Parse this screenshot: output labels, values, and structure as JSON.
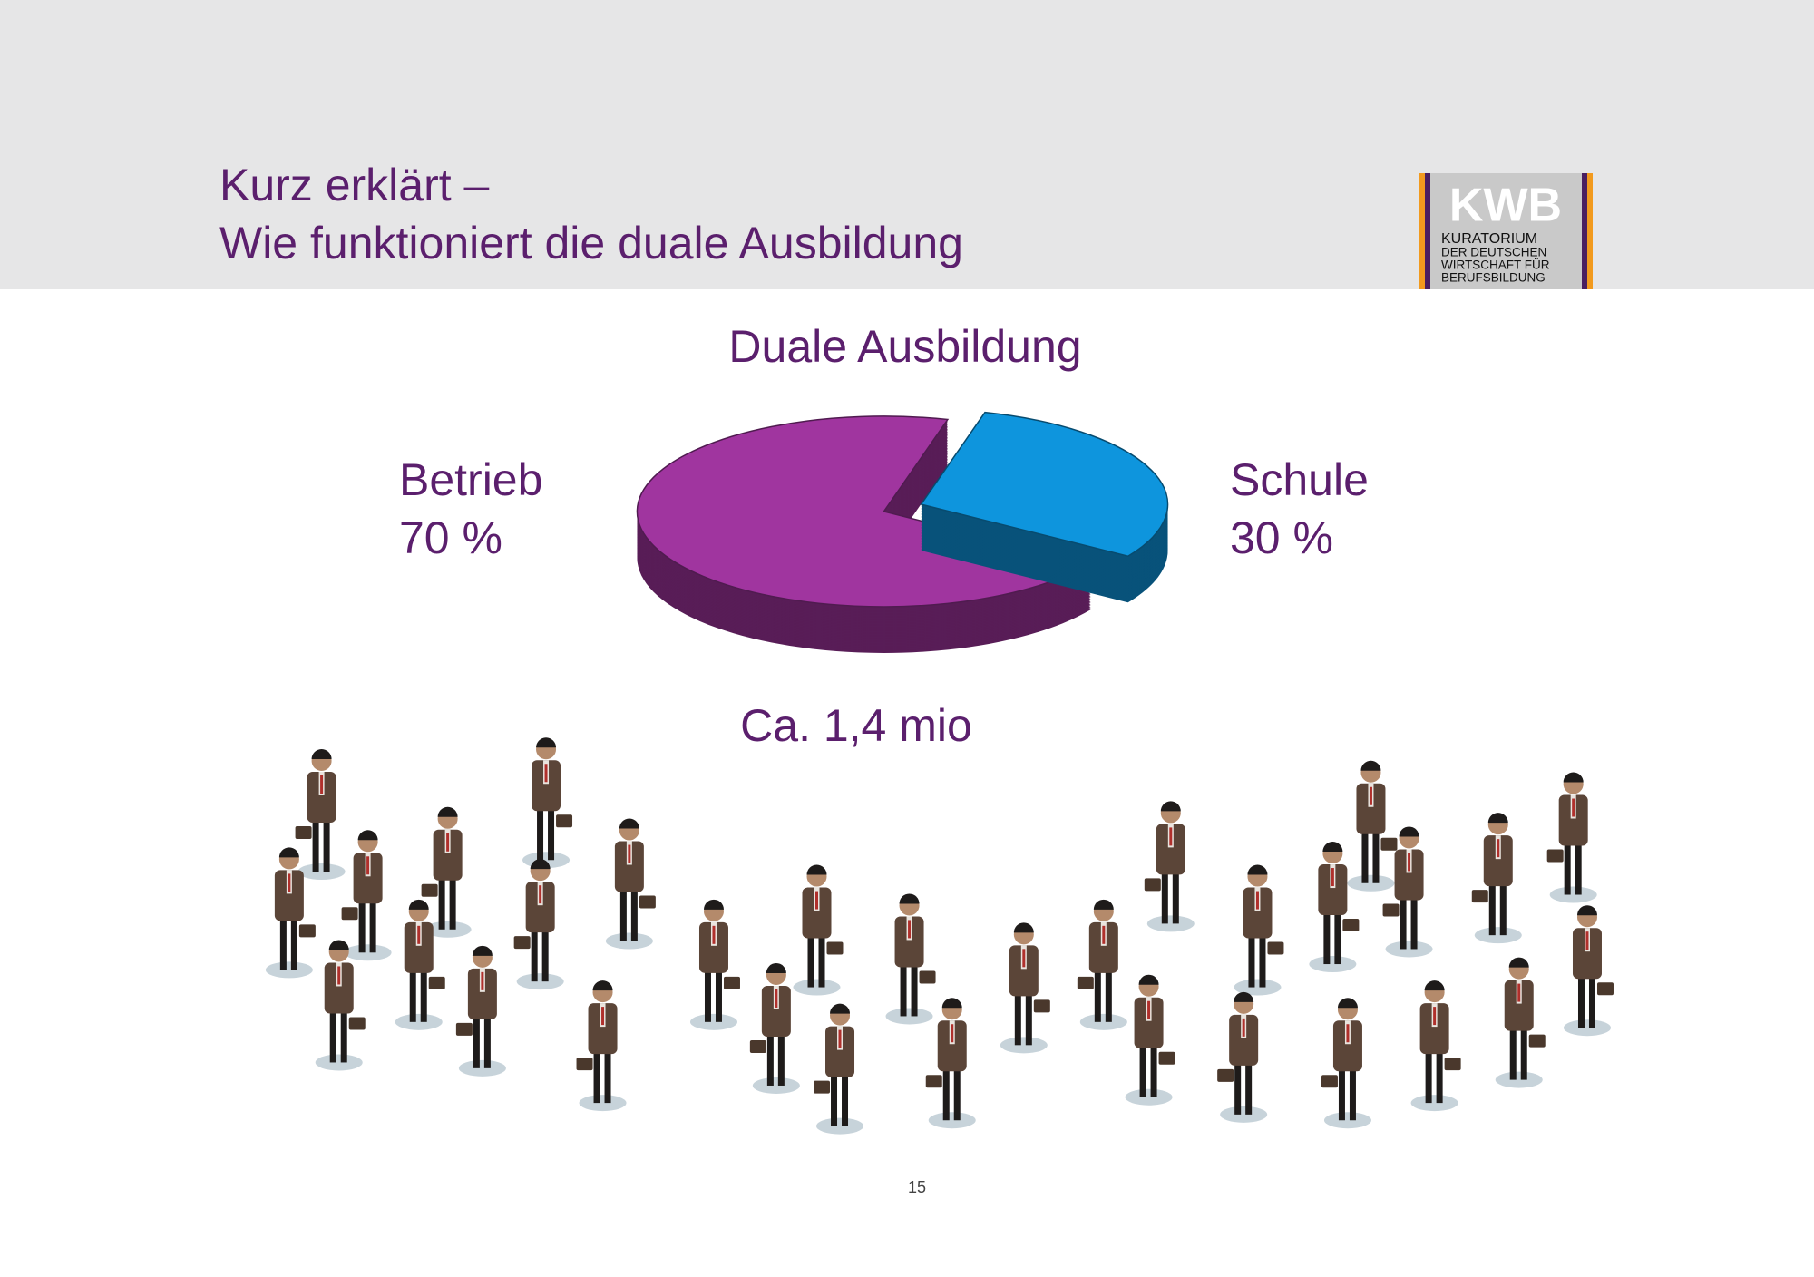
{
  "header": {
    "title_line_1": "Kurz erklärt –",
    "title_line_2": "Wie funktioniert die duale Ausbildung"
  },
  "logo": {
    "mark": "KWB",
    "lines": [
      "KURATORIUM",
      "DER DEUTSCHEN",
      "WIRTSCHAFT FÜR",
      "BERUFSBILDUNG"
    ]
  },
  "chart_data": {
    "type": "pie",
    "title": "Duale Ausbildung",
    "categories": [
      "Betrieb",
      "Schule"
    ],
    "values": [
      70,
      30
    ],
    "value_labels": [
      "70 %",
      "30 %"
    ],
    "colors": [
      "#a0359f",
      "#0e95dd"
    ],
    "annotation": "Ca. 1,4 mio"
  },
  "page_number": "15"
}
